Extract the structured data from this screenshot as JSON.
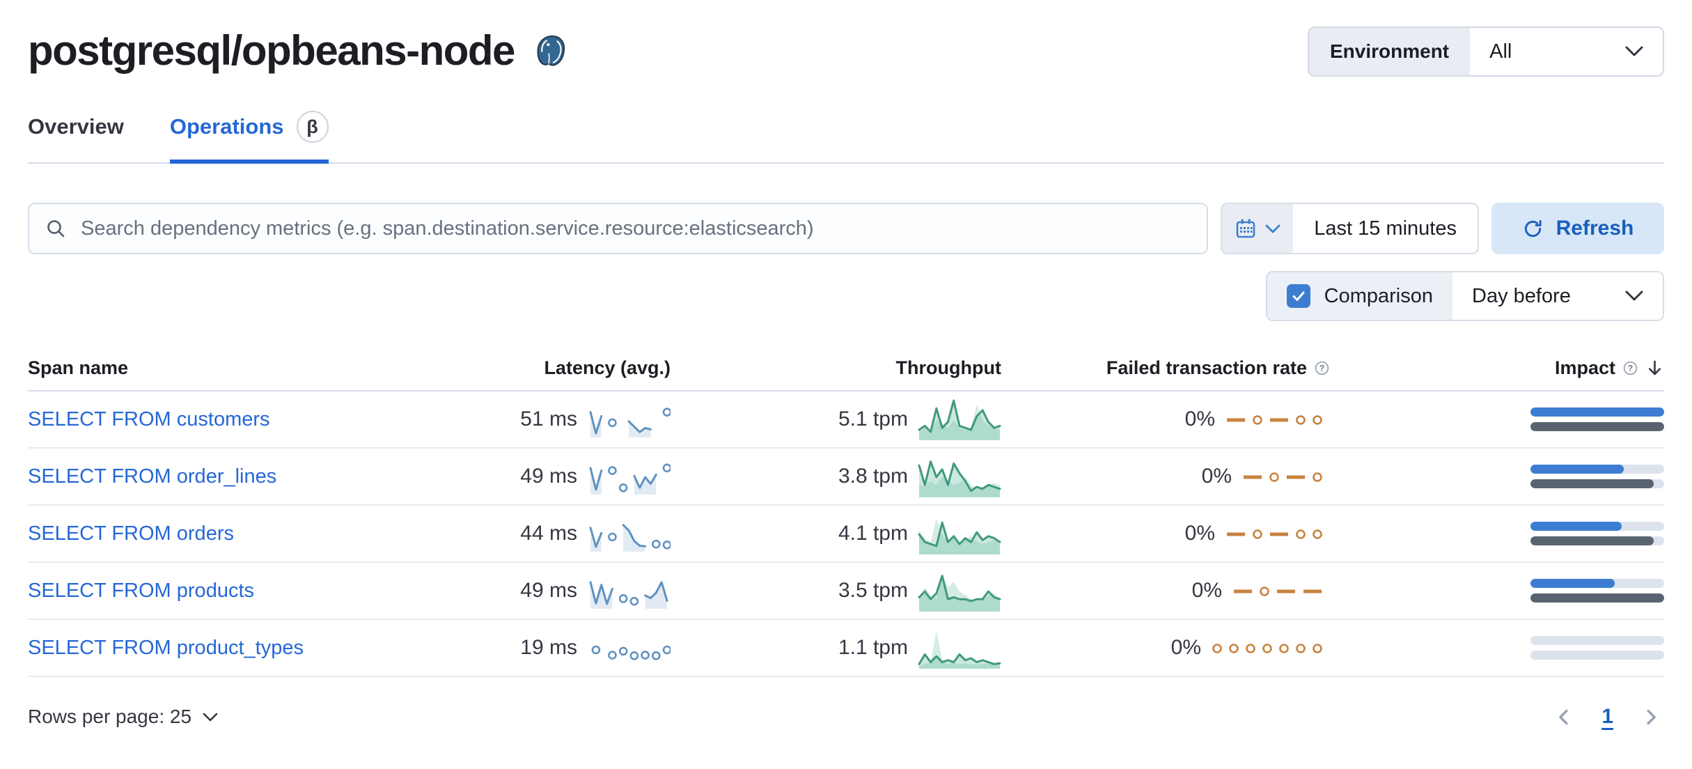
{
  "colors": {
    "accent": "#2567D6",
    "link": "#2567D6",
    "latency": "#6092C0",
    "throughput": "#54B399",
    "throughput_stroke": "#41997E",
    "failed": "#C8823E",
    "impact_current": "#3C7DD3",
    "impact_previous": "#5A6470",
    "impact_track": "#DDE3EC",
    "refresh_bg": "#D7E7F7",
    "refresh_text": "#1A5EBD"
  },
  "header": {
    "title": "postgresql/opbeans-node",
    "logo_icon": "postgresql-elephant",
    "environment_label": "Environment",
    "environment_value": "All"
  },
  "tabs": [
    {
      "label": "Overview",
      "active": false
    },
    {
      "label": "Operations",
      "active": true,
      "beta": "β"
    }
  ],
  "toolbar": {
    "search_placeholder": "Search dependency metrics (e.g. span.destination.service.resource:elasticsearch)",
    "time_range": "Last 15 minutes",
    "refresh_label": "Refresh",
    "comparison_label": "Comparison",
    "comparison_checked": true,
    "comparison_value": "Day before"
  },
  "table": {
    "columns": [
      "Span name",
      "Latency (avg.)",
      "Throughput",
      "Failed transaction rate",
      "Impact"
    ],
    "sorted_column": "Impact",
    "sort_direction": "desc",
    "rows": [
      {
        "name": "SELECT FROM customers",
        "latency": "51 ms",
        "throughput": "5.1 tpm",
        "failed_rate": "0%",
        "latency_spark": [
          0.85,
          0.05,
          0.7,
          null,
          0.45,
          null,
          null,
          0.5,
          0.3,
          0.1,
          0.25,
          0.2,
          null,
          null,
          0.85
        ],
        "throughput_spark": {
          "current": [
            0.25,
            0.35,
            0.2,
            0.8,
            0.3,
            0.45,
            1.0,
            0.35,
            0.3,
            0.25,
            0.6,
            0.75,
            0.45,
            0.3,
            0.35
          ],
          "previous": [
            0.2,
            0.3,
            0.25,
            0.5,
            0.4,
            0.3,
            0.5,
            0.3,
            0.25,
            0.3,
            0.9,
            0.5,
            0.35,
            0.3,
            0.25
          ]
        },
        "failed_spark": [
          "dash",
          "circle",
          "dash",
          "circle",
          "circle"
        ],
        "impact": {
          "current": 1.0,
          "previous": 1.0
        }
      },
      {
        "name": "SELECT FROM order_lines",
        "latency": "49 ms",
        "throughput": "3.8 tpm",
        "failed_rate": "0%",
        "latency_spark": [
          0.9,
          0.08,
          0.8,
          null,
          0.8,
          null,
          0.15,
          null,
          0.6,
          0.15,
          0.55,
          0.3,
          0.65,
          null,
          0.9
        ],
        "throughput_spark": {
          "current": [
            0.8,
            0.3,
            0.9,
            0.5,
            0.7,
            0.3,
            0.85,
            0.6,
            0.4,
            0.15,
            0.25,
            0.2,
            0.3,
            0.25,
            0.2
          ],
          "previous": [
            0.3,
            0.25,
            0.4,
            0.3,
            0.5,
            0.4,
            0.3,
            0.35,
            0.5,
            0.3,
            0.2,
            0.25,
            0.3,
            0.35,
            0.3
          ]
        },
        "failed_spark": [
          "dash",
          "circle",
          "dash",
          "circle"
        ],
        "impact": {
          "current": 0.7,
          "previous": 0.92
        }
      },
      {
        "name": "SELECT FROM orders",
        "latency": "44 ms",
        "throughput": "4.1 tpm",
        "failed_rate": "0%",
        "latency_spark": [
          0.8,
          0.08,
          0.6,
          null,
          0.45,
          null,
          0.9,
          0.7,
          0.3,
          0.12,
          0.1,
          null,
          0.18,
          null,
          0.15
        ],
        "throughput_spark": {
          "current": [
            0.5,
            0.3,
            0.25,
            0.2,
            0.8,
            0.3,
            0.45,
            0.25,
            0.4,
            0.3,
            0.55,
            0.35,
            0.45,
            0.4,
            0.3
          ],
          "previous": [
            0.6,
            0.4,
            0.3,
            0.9,
            0.5,
            0.3,
            0.4,
            0.3,
            0.35,
            0.45,
            0.3,
            0.25,
            0.3,
            0.35,
            0.25
          ]
        },
        "failed_spark": [
          "dash",
          "circle",
          "dash",
          "circle",
          "circle"
        ],
        "impact": {
          "current": 0.68,
          "previous": 0.92
        }
      },
      {
        "name": "SELECT FROM products",
        "latency": "49 ms",
        "throughput": "3.5 tpm",
        "failed_rate": "0%",
        "latency_spark": [
          0.9,
          0.1,
          0.8,
          0.08,
          0.65,
          null,
          0.28,
          null,
          0.18,
          null,
          0.4,
          0.3,
          0.5,
          0.9,
          0.2
        ],
        "throughput_spark": {
          "current": [
            0.35,
            0.5,
            0.3,
            0.45,
            0.9,
            0.3,
            0.35,
            0.3,
            0.3,
            0.25,
            0.3,
            0.3,
            0.5,
            0.35,
            0.3
          ],
          "previous": [
            0.3,
            0.6,
            0.4,
            0.3,
            0.9,
            0.6,
            0.75,
            0.5,
            0.4,
            0.3,
            0.25,
            0.3,
            0.4,
            0.45,
            0.3
          ]
        },
        "failed_spark": [
          "dash",
          "circle",
          "dash",
          "dash"
        ],
        "impact": {
          "current": 0.63,
          "previous": 1.0
        }
      },
      {
        "name": "SELECT FROM product_types",
        "latency": "19 ms",
        "throughput": "1.1 tpm",
        "failed_rate": "0%",
        "latency_spark": [
          null,
          0.5,
          null,
          null,
          0.3,
          null,
          0.45,
          null,
          0.28,
          null,
          0.3,
          null,
          0.28,
          null,
          0.5
        ],
        "throughput_spark": {
          "current": [
            0.1,
            0.35,
            0.15,
            0.3,
            0.15,
            0.2,
            0.15,
            0.35,
            0.2,
            0.25,
            0.15,
            0.2,
            0.15,
            0.1,
            0.12
          ],
          "previous": [
            0.05,
            0.1,
            0.15,
            0.95,
            0.2,
            0.1,
            0.15,
            0.1,
            0.12,
            0.1,
            0.08,
            0.1,
            0.12,
            0.08,
            0.1
          ]
        },
        "failed_spark": [
          "circle",
          "circle",
          "circle",
          "circle",
          "circle",
          "circle",
          "circle"
        ],
        "impact": {
          "current": 0.0,
          "previous": 0.0
        }
      }
    ]
  },
  "footer": {
    "rows_per_page_label": "Rows per page: 25",
    "page": "1"
  }
}
